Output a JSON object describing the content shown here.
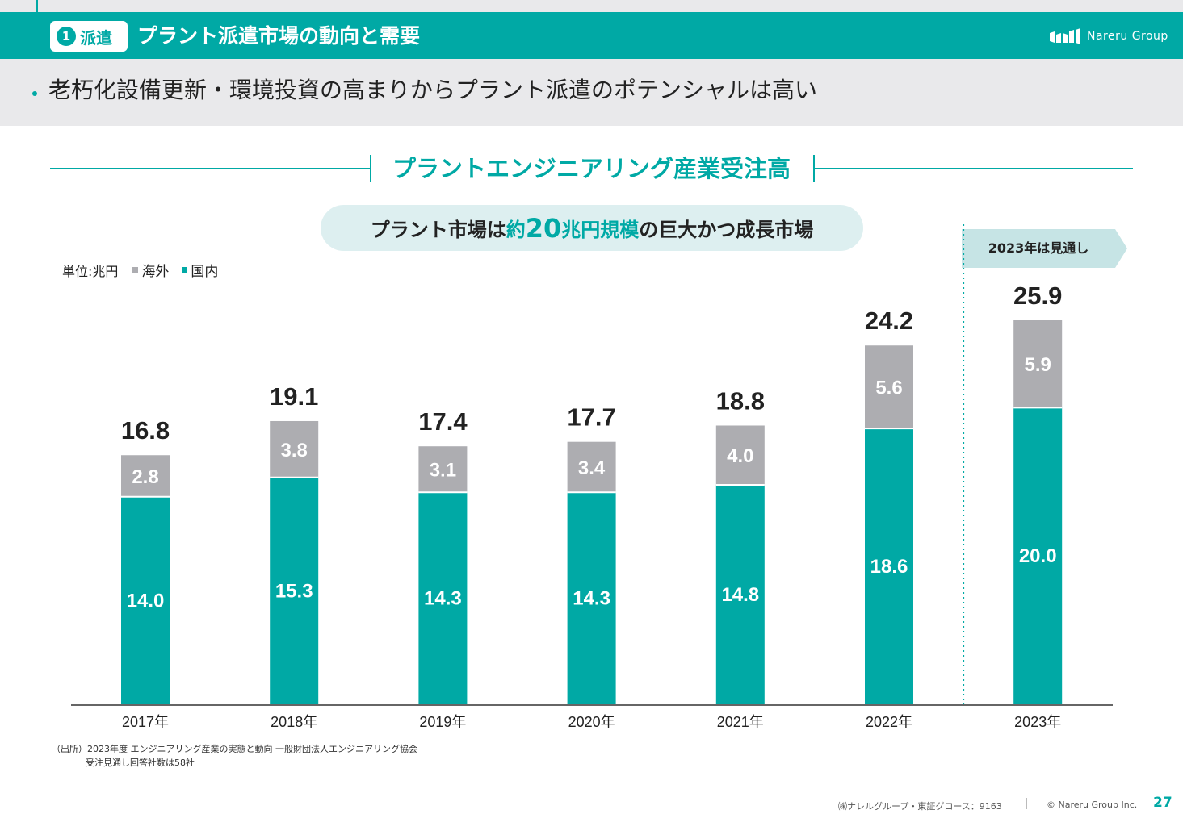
{
  "header": {
    "badge_number": "1",
    "badge_label": "派遣",
    "title": "プラント派遣市場の動向と需要",
    "logo_text": "Nareru Group",
    "logo_icon": "nareru-logo-icon"
  },
  "subtitle": "老朽化設備更新・環境投資の高まりからプラント派遣のポテンシャルは高い",
  "section_title": "プラントエンジニアリング産業受注高",
  "headline": {
    "part1": "プラント市場は",
    "part2": "約",
    "part3": "20",
    "part4": "兆円規模",
    "part5": "の巨大かつ成長市場"
  },
  "forecast_label": "2023年は見通し",
  "legend": {
    "unit": "単位:兆円",
    "overseas": "海外",
    "domestic": "国内"
  },
  "colors": {
    "accent": "#00a9a5",
    "overseas": "#adadb1",
    "domestic": "#00a9a5",
    "band": "#e9e9eb",
    "pill": "#ddeff0",
    "forecast_tag": "#c6e4e5"
  },
  "chart_data": {
    "type": "bar",
    "stacked": true,
    "categories": [
      "2017年",
      "2018年",
      "2019年",
      "2020年",
      "2021年",
      "2022年",
      "2023年"
    ],
    "series": [
      {
        "name": "国内",
        "values": [
          14.0,
          15.3,
          14.3,
          14.3,
          14.8,
          18.6,
          20.0
        ]
      },
      {
        "name": "海外",
        "values": [
          2.8,
          3.8,
          3.1,
          3.4,
          4.0,
          5.6,
          5.9
        ]
      }
    ],
    "totals": [
      16.8,
      19.1,
      17.4,
      17.7,
      18.8,
      24.2,
      25.9
    ],
    "ylim": [
      0,
      28
    ],
    "grid": false,
    "forecast_category": "2023年"
  },
  "source": {
    "label": "（出所）",
    "line1": "2023年度 エンジニアリング産業の実態と動向 一般財団法人エンジニアリング協会",
    "line2": "受注見通し回答社数は58社"
  },
  "footer": {
    "company": "㈱ナレルグループ・東証グロース：9163",
    "copyright": "© Nareru Group Inc.",
    "page": "27"
  }
}
